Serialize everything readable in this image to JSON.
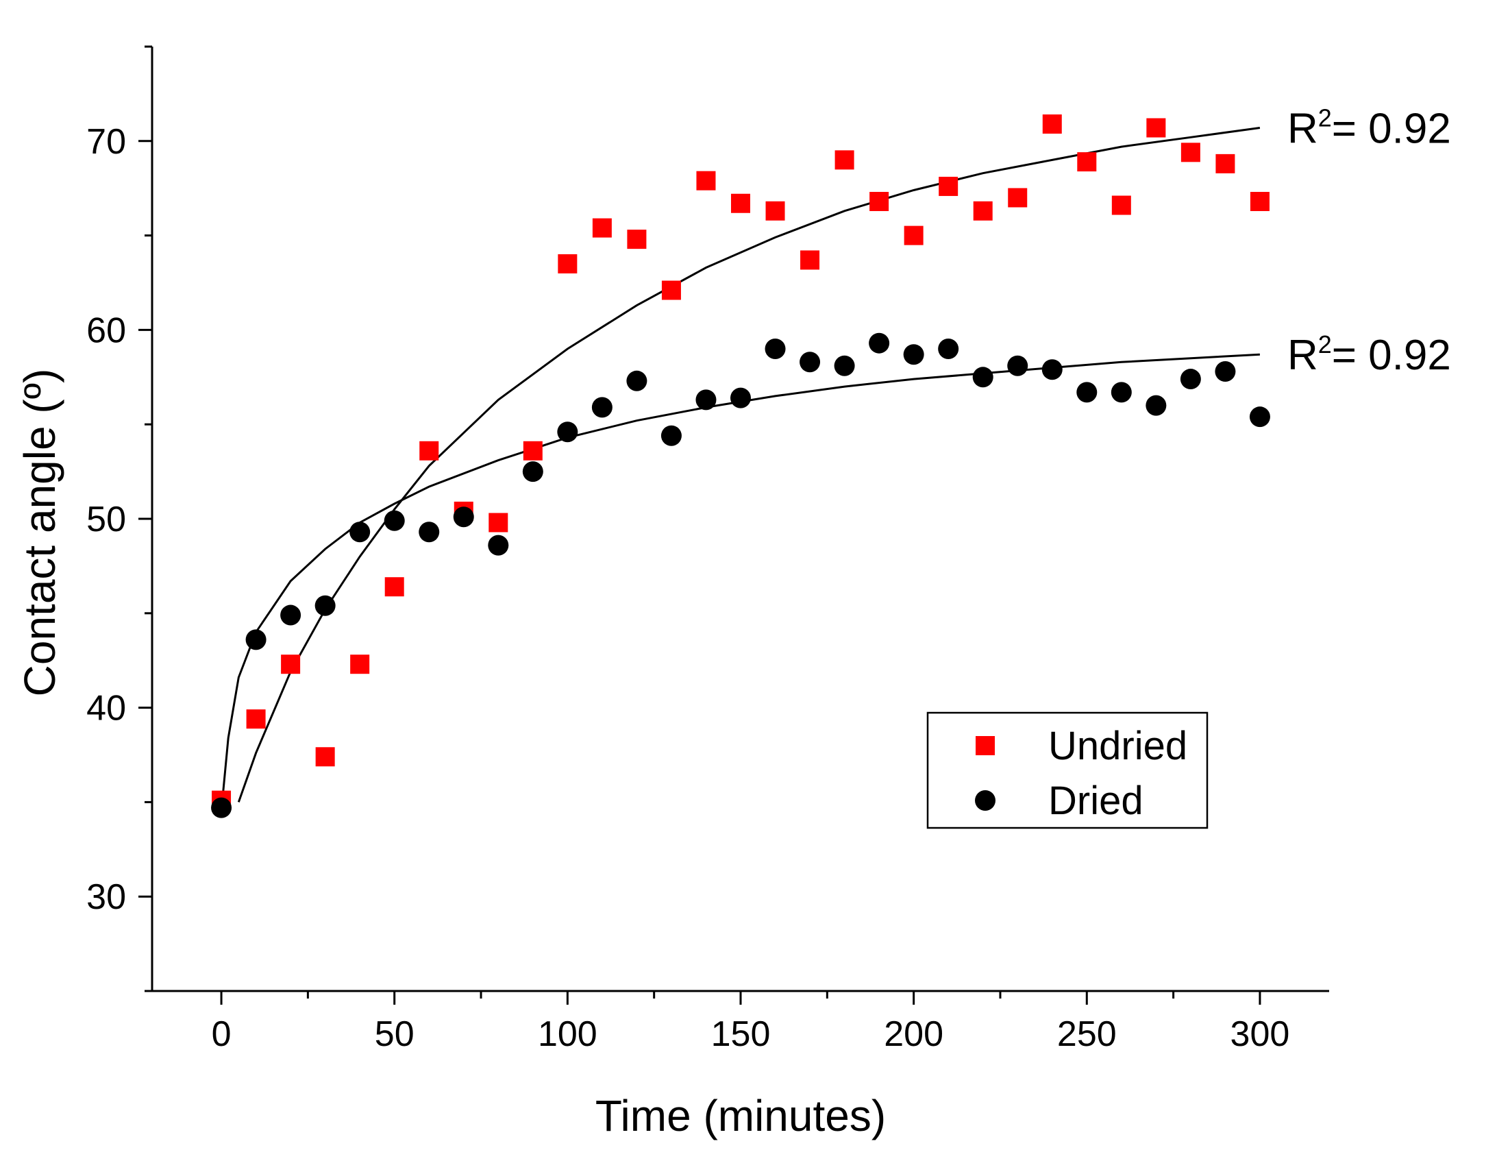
{
  "chart_data": {
    "type": "scatter",
    "xlabel": "Time (minutes)",
    "ylabel": "Contact angle (º)",
    "xlim": [
      -20,
      320
    ],
    "ylim": [
      25,
      75
    ],
    "xticks": [
      0,
      50,
      100,
      150,
      200,
      250,
      300
    ],
    "yticks": [
      30,
      40,
      50,
      60,
      70
    ],
    "xtick_labels": [
      "0",
      "50",
      "100",
      "150",
      "200",
      "250",
      "300"
    ],
    "ytick_labels": [
      "30",
      "40",
      "50",
      "60",
      "70"
    ],
    "grid": false,
    "legend_position": "lower-right",
    "series": [
      {
        "name": "Undried",
        "marker": "square",
        "color": "#ff0000",
        "x": [
          0,
          10,
          20,
          30,
          40,
          50,
          60,
          70,
          80,
          90,
          100,
          110,
          120,
          130,
          140,
          150,
          160,
          170,
          180,
          190,
          200,
          210,
          220,
          230,
          240,
          250,
          260,
          270,
          280,
          290,
          300
        ],
        "y": [
          35.1,
          39.4,
          42.3,
          37.4,
          42.3,
          46.4,
          53.6,
          50.4,
          49.8,
          53.6,
          63.5,
          65.4,
          64.8,
          62.1,
          67.9,
          66.7,
          66.3,
          63.7,
          69.0,
          66.8,
          65.0,
          67.6,
          66.3,
          67.0,
          70.9,
          68.9,
          66.6,
          70.7,
          69.4,
          68.8,
          66.8
        ]
      },
      {
        "name": "Dried",
        "marker": "circle",
        "color": "#000000",
        "x": [
          0,
          10,
          20,
          30,
          40,
          50,
          60,
          70,
          80,
          90,
          100,
          110,
          120,
          130,
          140,
          150,
          160,
          170,
          180,
          190,
          200,
          210,
          220,
          230,
          240,
          250,
          260,
          270,
          280,
          290,
          300
        ],
        "y": [
          34.7,
          43.6,
          44.9,
          45.4,
          49.3,
          49.9,
          49.3,
          50.1,
          48.6,
          52.5,
          54.6,
          55.9,
          57.3,
          54.4,
          56.3,
          56.4,
          59.0,
          58.3,
          58.1,
          59.3,
          58.7,
          59.0,
          57.5,
          58.1,
          57.9,
          56.7,
          56.7,
          56.0,
          57.4,
          57.8,
          55.4
        ]
      }
    ],
    "fits": [
      {
        "series": "Undried",
        "x": [
          5,
          10,
          20,
          30,
          40,
          50,
          60,
          80,
          100,
          120,
          140,
          160,
          180,
          200,
          220,
          240,
          260,
          280,
          300
        ],
        "y": [
          35.0,
          37.6,
          41.9,
          45.2,
          48.0,
          50.5,
          52.8,
          56.3,
          59.0,
          61.3,
          63.3,
          64.9,
          66.3,
          67.4,
          68.3,
          69.0,
          69.7,
          70.2,
          70.7
        ],
        "annotation": "= 0.92"
      },
      {
        "series": "Dried",
        "x": [
          0.5,
          2,
          5,
          10,
          20,
          30,
          40,
          50,
          60,
          80,
          100,
          120,
          140,
          160,
          180,
          200,
          220,
          240,
          260,
          280,
          300
        ],
        "y": [
          35.5,
          38.4,
          41.6,
          44.0,
          46.7,
          48.4,
          49.8,
          50.8,
          51.7,
          53.1,
          54.3,
          55.2,
          55.9,
          56.5,
          57.0,
          57.4,
          57.7,
          58.0,
          58.3,
          58.5,
          58.7
        ],
        "annotation": "= 0.92"
      }
    ],
    "annotation_prefix": "R",
    "annotation_superscript": "2"
  }
}
